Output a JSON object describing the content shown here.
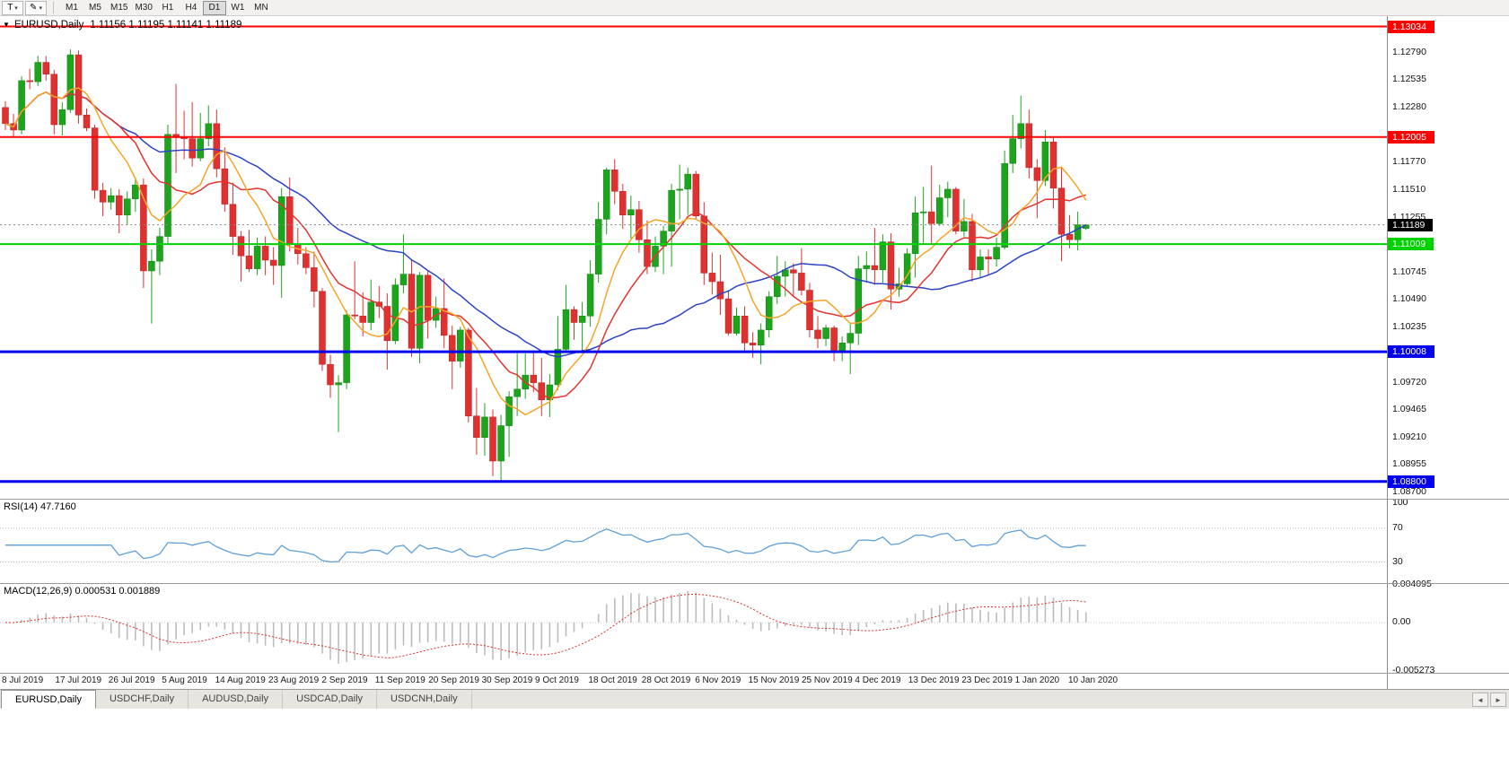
{
  "toolbar": {
    "text_tool_label": "T",
    "draw_tool_glyph": "✎",
    "caret": "▾",
    "timeframes": [
      "M1",
      "M5",
      "M15",
      "M30",
      "H1",
      "H4",
      "D1",
      "W1",
      "MN"
    ],
    "active_timeframe": "D1"
  },
  "chart": {
    "collapse_glyph": "▼"
  },
  "chart_data": {
    "type": "candlestick",
    "symbol": "EURUSD",
    "timeframe": "Daily",
    "title": "EURUSD,Daily",
    "ohlc": "1.11156 1.11195 1.11141 1.11189",
    "colors": {
      "up": "#1CA51C",
      "up_edge": "#128012",
      "down": "#E03131",
      "down_edge": "#B52222",
      "current_line": "#888888"
    },
    "price_axis": {
      "min": 1.0864,
      "max": 1.1313,
      "ticks": [
        "1.12790",
        "1.12535",
        "1.12280",
        "1.11770",
        "1.11510",
        "1.11255",
        "1.10745",
        "1.10490",
        "1.10235",
        "1.09720",
        "1.09465",
        "1.09210",
        "1.08955",
        "1.08700"
      ]
    },
    "hlines": [
      {
        "price": 1.13034,
        "label": "1.13034",
        "color": "#FF0000",
        "width": 2
      },
      {
        "price": 1.12005,
        "label": "1.12005",
        "color": "#FF0000",
        "width": 2
      },
      {
        "price": 1.11009,
        "label": "1.11009",
        "color": "#00D200",
        "width": 2
      },
      {
        "price": 1.10008,
        "label": "1.10008",
        "color": "#0000EE",
        "width": 3
      },
      {
        "price": 1.088,
        "label": "1.08800",
        "color": "#0000EE",
        "width": 3
      }
    ],
    "current_price": {
      "price": 1.11189,
      "label": "1.11189",
      "color": "#000000"
    },
    "moving_averages": [
      {
        "name": "slow",
        "period": 30,
        "color": "#2B43C4"
      },
      {
        "name": "medium",
        "period": 13,
        "color": "#E3342F"
      },
      {
        "name": "fast",
        "period": 8,
        "color": "#F7A426"
      }
    ],
    "candles": [
      [
        1.1228,
        1.1234,
        1.1207,
        1.1213
      ],
      [
        1.1213,
        1.1222,
        1.1201,
        1.1207
      ],
      [
        1.1207,
        1.1257,
        1.1203,
        1.1253
      ],
      [
        1.1253,
        1.1264,
        1.1245,
        1.1252
      ],
      [
        1.1252,
        1.1276,
        1.1248,
        1.127
      ],
      [
        1.127,
        1.1276,
        1.1253,
        1.1259
      ],
      [
        1.1259,
        1.1263,
        1.1203,
        1.1212
      ],
      [
        1.1212,
        1.1233,
        1.1202,
        1.1226
      ],
      [
        1.1226,
        1.1282,
        1.1223,
        1.1277
      ],
      [
        1.1277,
        1.1281,
        1.1213,
        1.1221
      ],
      [
        1.1221,
        1.1227,
        1.1206,
        1.1209
      ],
      [
        1.1209,
        1.1212,
        1.1143,
        1.1151
      ],
      [
        1.1151,
        1.1158,
        1.1127,
        1.114
      ],
      [
        1.114,
        1.1153,
        1.1133,
        1.1146
      ],
      [
        1.1146,
        1.1152,
        1.1111,
        1.1128
      ],
      [
        1.1128,
        1.115,
        1.1119,
        1.1143
      ],
      [
        1.1143,
        1.1163,
        1.1131,
        1.1156
      ],
      [
        1.1156,
        1.1162,
        1.106,
        1.1076
      ],
      [
        1.1076,
        1.1096,
        1.1027,
        1.1085
      ],
      [
        1.1085,
        1.1116,
        1.1072,
        1.1108
      ],
      [
        1.1108,
        1.1212,
        1.1101,
        1.1203
      ],
      [
        1.1203,
        1.125,
        1.1167,
        1.12
      ],
      [
        1.12,
        1.1225,
        1.118,
        1.1199
      ],
      [
        1.1199,
        1.1233,
        1.1173,
        1.1181
      ],
      [
        1.1181,
        1.1223,
        1.1178,
        1.1199
      ],
      [
        1.1199,
        1.123,
        1.1192,
        1.1213
      ],
      [
        1.1213,
        1.1226,
        1.1163,
        1.1171
      ],
      [
        1.1171,
        1.1191,
        1.1131,
        1.1138
      ],
      [
        1.1138,
        1.1158,
        1.1091,
        1.1108
      ],
      [
        1.1108,
        1.1113,
        1.1066,
        1.109
      ],
      [
        1.109,
        1.1114,
        1.1075,
        1.1078
      ],
      [
        1.1078,
        1.1107,
        1.1072,
        1.1099
      ],
      [
        1.1099,
        1.1108,
        1.1072,
        1.1086
      ],
      [
        1.1086,
        1.1098,
        1.1063,
        1.1081
      ],
      [
        1.1081,
        1.1153,
        1.1051,
        1.1145
      ],
      [
        1.1145,
        1.1163,
        1.1094,
        1.1101
      ],
      [
        1.1101,
        1.1116,
        1.1082,
        1.1092
      ],
      [
        1.1092,
        1.1098,
        1.1073,
        1.1079
      ],
      [
        1.1079,
        1.1094,
        1.1042,
        1.1057
      ],
      [
        1.1057,
        1.106,
        1.0983,
        1.0989
      ],
      [
        1.0989,
        1.0998,
        1.0958,
        1.097
      ],
      [
        1.097,
        1.0979,
        1.0926,
        1.0972
      ],
      [
        1.0972,
        1.1039,
        1.0966,
        1.1035
      ],
      [
        1.1035,
        1.1085,
        1.1031,
        1.1034
      ],
      [
        1.1034,
        1.1056,
        1.1015,
        1.1028
      ],
      [
        1.1028,
        1.1068,
        1.1021,
        1.1047
      ],
      [
        1.1047,
        1.1062,
        1.1032,
        1.1043
      ],
      [
        1.1043,
        1.1055,
        1.0984,
        1.1011
      ],
      [
        1.1011,
        1.1069,
        1.1008,
        1.1063
      ],
      [
        1.1063,
        1.111,
        1.1055,
        1.1073
      ],
      [
        1.1073,
        1.1087,
        1.0996,
        1.1004
      ],
      [
        1.1004,
        1.1075,
        1.099,
        1.1072
      ],
      [
        1.1072,
        1.1076,
        1.1013,
        1.103
      ],
      [
        1.103,
        1.1052,
        1.1023,
        1.1041
      ],
      [
        1.1041,
        1.1069,
        1.1004,
        1.1016
      ],
      [
        1.1016,
        1.1025,
        1.0966,
        1.0992
      ],
      [
        1.0992,
        1.1024,
        1.0986,
        1.1021
      ],
      [
        1.1021,
        1.1023,
        1.0935,
        1.0941
      ],
      [
        1.0941,
        1.0967,
        1.0905,
        1.0921
      ],
      [
        1.0921,
        1.0953,
        1.0904,
        1.094
      ],
      [
        1.094,
        1.0947,
        1.0885,
        1.0899
      ],
      [
        1.0899,
        1.0942,
        1.0879,
        1.0932
      ],
      [
        1.0932,
        1.0964,
        1.0903,
        1.0959
      ],
      [
        1.0959,
        1.0999,
        1.0941,
        1.0966
      ],
      [
        1.0966,
        1.0999,
        1.0957,
        1.0979
      ],
      [
        1.0979,
        1.1,
        1.0963,
        1.0972
      ],
      [
        1.0972,
        1.0995,
        1.0941,
        1.0956
      ],
      [
        1.0956,
        1.098,
        1.094,
        1.097
      ],
      [
        1.097,
        1.1034,
        1.0965,
        1.1003
      ],
      [
        1.1003,
        1.1063,
        1.1002,
        1.104
      ],
      [
        1.104,
        1.1043,
        1.1012,
        1.1028
      ],
      [
        1.1028,
        1.1047,
        1.1001,
        1.1034
      ],
      [
        1.1034,
        1.1086,
        1.1024,
        1.1073
      ],
      [
        1.1073,
        1.114,
        1.1065,
        1.1124
      ],
      [
        1.1124,
        1.1172,
        1.111,
        1.117
      ],
      [
        1.117,
        1.118,
        1.1138,
        1.115
      ],
      [
        1.115,
        1.1157,
        1.1115,
        1.1128
      ],
      [
        1.1128,
        1.1146,
        1.1106,
        1.1133
      ],
      [
        1.1133,
        1.1141,
        1.1093,
        1.1105
      ],
      [
        1.1105,
        1.1123,
        1.1073,
        1.108
      ],
      [
        1.108,
        1.1108,
        1.1075,
        1.1099
      ],
      [
        1.1099,
        1.1118,
        1.1073,
        1.1113
      ],
      [
        1.1113,
        1.1157,
        1.108,
        1.1151
      ],
      [
        1.1151,
        1.1175,
        1.1124,
        1.1152
      ],
      [
        1.1152,
        1.1172,
        1.1128,
        1.1166
      ],
      [
        1.1166,
        1.1169,
        1.1124,
        1.1127
      ],
      [
        1.1127,
        1.114,
        1.1063,
        1.1074
      ],
      [
        1.1074,
        1.1093,
        1.1054,
        1.1066
      ],
      [
        1.1066,
        1.1091,
        1.1035,
        1.105
      ],
      [
        1.105,
        1.1058,
        1.1016,
        1.1018
      ],
      [
        1.1018,
        1.1042,
        1.1016,
        1.1034
      ],
      [
        1.1034,
        1.1043,
        1.1002,
        1.1009
      ],
      [
        1.1009,
        1.1019,
        1.0995,
        1.1007
      ],
      [
        1.1007,
        1.1027,
        1.0989,
        1.1021
      ],
      [
        1.1021,
        1.1057,
        1.1014,
        1.1052
      ],
      [
        1.1052,
        1.109,
        1.1045,
        1.1071
      ],
      [
        1.1071,
        1.1085,
        1.1052,
        1.1077
      ],
      [
        1.1077,
        1.1083,
        1.1052,
        1.1074
      ],
      [
        1.1074,
        1.1097,
        1.1053,
        1.1058
      ],
      [
        1.1058,
        1.1065,
        1.1014,
        1.1021
      ],
      [
        1.1021,
        1.1034,
        1.1004,
        1.1013
      ],
      [
        1.1013,
        1.1026,
        1.1006,
        1.1023
      ],
      [
        1.1023,
        1.1025,
        1.0992,
        1.1001
      ],
      [
        1.1001,
        1.1015,
        1.0992,
        1.1009
      ],
      [
        1.1009,
        1.1028,
        1.098,
        1.1018
      ],
      [
        1.1018,
        1.109,
        1.1007,
        1.1078
      ],
      [
        1.1078,
        1.1094,
        1.1065,
        1.1081
      ],
      [
        1.1081,
        1.1116,
        1.1063,
        1.1077
      ],
      [
        1.1077,
        1.111,
        1.1065,
        1.1103
      ],
      [
        1.1103,
        1.1111,
        1.104,
        1.1059
      ],
      [
        1.1059,
        1.1079,
        1.1052,
        1.1064
      ],
      [
        1.1064,
        1.1097,
        1.1061,
        1.1092
      ],
      [
        1.1092,
        1.1145,
        1.107,
        1.113
      ],
      [
        1.113,
        1.1154,
        1.1102,
        1.1131
      ],
      [
        1.1131,
        1.1174,
        1.1101,
        1.112
      ],
      [
        1.112,
        1.1156,
        1.1118,
        1.1144
      ],
      [
        1.1144,
        1.1159,
        1.1126,
        1.1152
      ],
      [
        1.1152,
        1.1154,
        1.111,
        1.1113
      ],
      [
        1.1113,
        1.1143,
        1.1108,
        1.1122
      ],
      [
        1.1122,
        1.1129,
        1.1066,
        1.1077
      ],
      [
        1.1077,
        1.1096,
        1.1069,
        1.1089
      ],
      [
        1.1089,
        1.1096,
        1.1072,
        1.1087
      ],
      [
        1.1087,
        1.1107,
        1.108,
        1.1098
      ],
      [
        1.1098,
        1.1188,
        1.1096,
        1.1176
      ],
      [
        1.1176,
        1.1221,
        1.1167,
        1.1199
      ],
      [
        1.1199,
        1.1239,
        1.119,
        1.1213
      ],
      [
        1.1213,
        1.1226,
        1.1162,
        1.1172
      ],
      [
        1.1172,
        1.118,
        1.1125,
        1.116
      ],
      [
        1.116,
        1.1207,
        1.1155,
        1.1196
      ],
      [
        1.1196,
        1.12,
        1.1134,
        1.1153
      ],
      [
        1.1153,
        1.1173,
        1.1085,
        1.111
      ],
      [
        1.111,
        1.1128,
        1.1097,
        1.1105
      ],
      [
        1.1105,
        1.1131,
        1.1095,
        1.1119
      ],
      [
        1.11156,
        1.11195,
        1.11141,
        1.11189
      ]
    ],
    "rsi": {
      "label": "RSI(14) 47.7160",
      "period": 14,
      "value": "47.7160",
      "color": "#5F9FD8",
      "levels": [
        70,
        30
      ],
      "range": [
        5,
        105
      ],
      "axis_labels": [
        {
          "text": "100",
          "value": 100
        },
        {
          "text": "70",
          "value": 70
        },
        {
          "text": "30",
          "value": 30
        }
      ]
    },
    "macd": {
      "label": "MACD(12,26,9) 0.000531 0.001889",
      "fast": 12,
      "slow": 26,
      "signal": 9,
      "values": [
        "0.000531",
        "0.001889"
      ],
      "histogram_color": "#BDBDBD",
      "signal_color": "#E03030",
      "range": [
        -0.0055,
        0.0043
      ],
      "axis_labels": [
        {
          "text": "0.004095",
          "value": 0.004095
        },
        {
          "text": "0.00",
          "value": 0
        },
        {
          "text": "-0.005273",
          "value": -0.005273
        }
      ]
    },
    "dates": [
      "8 Jul 2019",
      "17 Jul 2019",
      "26 Jul 2019",
      "5 Aug 2019",
      "14 Aug 2019",
      "23 Aug 2019",
      "2 Sep 2019",
      "11 Sep 2019",
      "20 Sep 2019",
      "30 Sep 2019",
      "9 Oct 2019",
      "18 Oct 2019",
      "28 Oct 2019",
      "6 Nov 2019",
      "15 Nov 2019",
      "25 Nov 2019",
      "4 Dec 2019",
      "13 Dec 2019",
      "23 Dec 2019",
      "1 Jan 2020",
      "10 Jan 2020"
    ]
  },
  "tabs": {
    "items": [
      "EURUSD,Daily",
      "USDCHF,Daily",
      "AUDUSD,Daily",
      "USDCAD,Daily",
      "USDCNH,Daily"
    ],
    "active_index": 0,
    "scroll_left": "◄",
    "scroll_right": "►"
  }
}
